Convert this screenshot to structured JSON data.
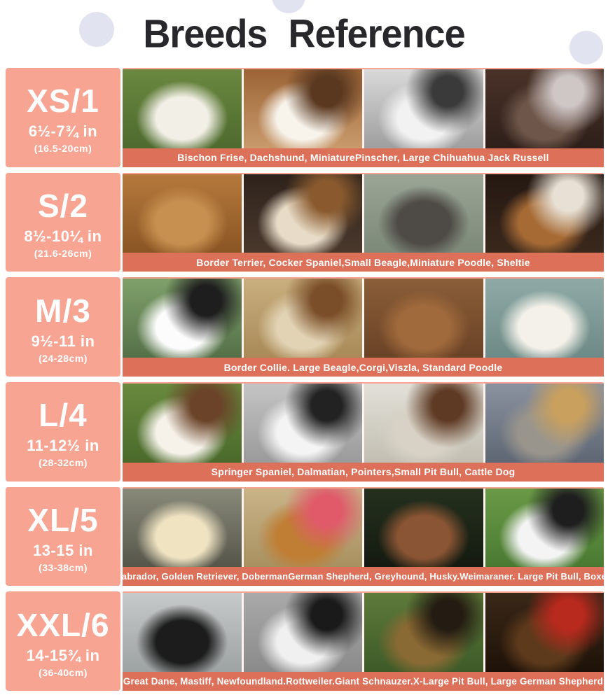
{
  "page": {
    "title": "Breeds Reference"
  },
  "colors": {
    "panel_pink": "#F8A493",
    "caption_coral": "#DC7059",
    "title_text": "#28282C",
    "decor_circle": "#E1E3F1",
    "text_on_pink": "#FFFFFF"
  },
  "rows": [
    {
      "size": "XS/1",
      "inches": "6½-7¾ in",
      "cm": "(16.5-20cm)",
      "caption": "Bischon Frise, Dachshund, MiniaturePinscher, Large Chihuahua Jack Russell",
      "photos": [
        {
          "name": "bichon-poodle-photo",
          "subject": "#F2EFE6",
          "bg_top": "#6B8840",
          "bg_bottom": "#4E6A2E"
        },
        {
          "name": "jack-russell-photo",
          "subject": "#F8F4EC",
          "accent": "#5A3820",
          "bg_top": "#9C6436",
          "bg_bottom": "#C89A6C"
        },
        {
          "name": "pit-bull-bw-photo",
          "subject": "#F2F2F2",
          "accent": "#3A3A3A",
          "bg_top": "#D9D9D9",
          "bg_bottom": "#9E9E9E"
        },
        {
          "name": "min-pinscher-photo",
          "subject": "#6E564A",
          "accent": "#CFC6C6",
          "bg_top": "#4A3228",
          "bg_bottom": "#2E1F1A"
        }
      ]
    },
    {
      "size": "S/2",
      "inches": "8½-10¼ in",
      "cm": "(21.6-26cm)",
      "caption": "Border Terrier, Cocker Spaniel,Small Beagle,Miniature Poodle, Sheltie",
      "photos": [
        {
          "name": "cocker-spaniel-photo",
          "subject": "#C89050",
          "bg_top": "#B5793C",
          "bg_bottom": "#8A5524"
        },
        {
          "name": "small-beagle-photo",
          "subject": "#E8DCC8",
          "accent": "#8A5A2E",
          "bg_top": "#2E231C",
          "bg_bottom": "#4A382C"
        },
        {
          "name": "miniature-poodle-photo",
          "subject": "#4E4A46",
          "bg_top": "#9AA596",
          "bg_bottom": "#7C8878"
        },
        {
          "name": "sheltie-photo",
          "subject": "#A66A34",
          "accent": "#E8E0D4",
          "bg_top": "#241812",
          "bg_bottom": "#3A281C"
        }
      ]
    },
    {
      "size": "M/3",
      "inches": "9½-11 in",
      "cm": "(24-28cm)",
      "caption": "Border Collie. Large Beagle,Corgi,Viszla, Standard Poodle",
      "photos": [
        {
          "name": "border-collie-photo",
          "subject": "#FCFCFC",
          "accent": "#1E1E1E",
          "bg_top": "#7FA06A",
          "bg_bottom": "#557048"
        },
        {
          "name": "large-beagle-photo",
          "subject": "#E2D3B4",
          "accent": "#7A4E28",
          "bg_top": "#C9AE7E",
          "bg_bottom": "#A88A58"
        },
        {
          "name": "vizsla-photo",
          "subject": "#A06A3C",
          "bg_top": "#8A5E38",
          "bg_bottom": "#6A4226"
        },
        {
          "name": "standard-poodle-photo",
          "subject": "#F4F1EA",
          "bg_top": "#8FAAA6",
          "bg_bottom": "#6E8A86"
        }
      ]
    },
    {
      "size": "L/4",
      "inches": "11-12½ in",
      "cm": "(28-32cm)",
      "caption": "Springer Spaniel, Dalmatian, Pointers,Small Pit Bull, Cattle Dog",
      "photos": [
        {
          "name": "springer-spaniel-photo",
          "subject": "#F6F2EA",
          "accent": "#6A4328",
          "bg_top": "#6A8A3E",
          "bg_bottom": "#4A6A2C"
        },
        {
          "name": "dalmatian-photo",
          "subject": "#F4F4F4",
          "accent": "#222222",
          "bg_top": "#C4C4C4",
          "bg_bottom": "#9A9A9A"
        },
        {
          "name": "pointer-photo",
          "subject": "#D8D2C6",
          "accent": "#5E3A24",
          "bg_top": "#E2E0D8",
          "bg_bottom": "#C2BEB2"
        },
        {
          "name": "cattle-dog-photo",
          "subject": "#9A958C",
          "accent": "#C9A05E",
          "bg_top": "#8A92A0",
          "bg_bottom": "#5E6674"
        }
      ]
    },
    {
      "size": "XL/5",
      "inches": "13-15 in",
      "cm": "(33-38cm)",
      "caption": "Labrador, Golden Retriever, DobermanGerman Shepherd, Greyhound, Husky.Weimaraner. Large Pit Bull, Boxer",
      "photos": [
        {
          "name": "labrador-photo",
          "subject": "#EFE3C2",
          "bg_top": "#8A8A7A",
          "bg_bottom": "#55554A"
        },
        {
          "name": "golden-retriever-photo",
          "subject": "#C07E34",
          "accent": "#E05A6A",
          "bg_top": "#C9B488",
          "bg_bottom": "#A89060"
        },
        {
          "name": "large-pit-bull-photo",
          "subject": "#8A5534",
          "bg_top": "#25301E",
          "bg_bottom": "#141A10"
        },
        {
          "name": "husky-photo",
          "subject": "#F4F4F4",
          "accent": "#1E1E1E",
          "bg_top": "#6A9A46",
          "bg_bottom": "#4A7A32"
        }
      ]
    },
    {
      "size": "XXL/6",
      "inches": "14-15¾ in",
      "cm": "(36-40cm)",
      "caption": "Great Dane, Mastiff, Newfoundland.Rottweiler.Giant Schnauzer.X-Large Pit Bull, Large German Shepherd",
      "photos": [
        {
          "name": "newfoundland-photo",
          "subject": "#1C1C1C",
          "bg_top": "#C6C9C9",
          "bg_bottom": "#9DA2A2"
        },
        {
          "name": "great-dane-photo",
          "subject": "#F0F0F0",
          "accent": "#1A1A1A",
          "bg_top": "#A9A9A9",
          "bg_bottom": "#8A8A8A"
        },
        {
          "name": "german-shepherd-photo",
          "subject": "#8A6A34",
          "accent": "#241C12",
          "bg_top": "#5E7A3A",
          "bg_bottom": "#3E5A28"
        },
        {
          "name": "tibetan-mastiff-photo",
          "subject": "#5E3A1C",
          "accent": "#B8291E",
          "bg_top": "#3A2818",
          "bg_bottom": "#1E1208"
        }
      ]
    }
  ]
}
